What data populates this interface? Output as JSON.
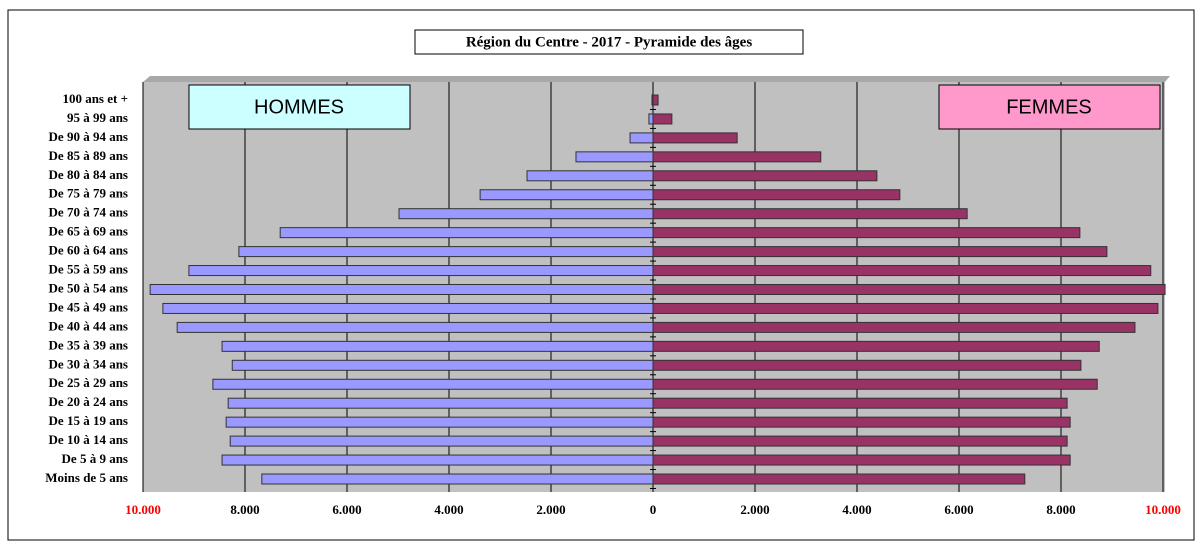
{
  "chart_data": {
    "type": "bar",
    "orientation": "horizontal",
    "title": "Région du Centre - 2017 - Pyramide des âges",
    "categories": [
      "100 ans et +",
      "95 à 99 ans",
      "De 90 à 94 ans",
      "De 85 à 89 ans",
      "De 80 à 84 ans",
      "De 75 à 79 ans",
      "De 70 à 74 ans",
      "De 65 à 69 ans",
      "De 60 à 64 ans",
      "De 55 à 59 ans",
      "De 50 à 54 ans",
      "De 45 à 49 ans",
      "De 40 à 44 ans",
      "De 35 à 39 ans",
      "De 30 à 34 ans",
      "De 25 à 29 ans",
      "De 20 à 24 ans",
      "De 15 à 19 ans",
      "De 10 à 14 ans",
      "De 5 à 9 ans",
      "Moins de 5 ans"
    ],
    "series": [
      {
        "name": "HOMMES",
        "color": "#9999ff",
        "values": [
          -20,
          -80,
          -450,
          -1510,
          -2470,
          -3390,
          -4980,
          -7310,
          -8120,
          -9100,
          -9860,
          -9610,
          -9330,
          -8450,
          -8250,
          -8630,
          -8330,
          -8370,
          -8290,
          -8450,
          -7670
        ]
      },
      {
        "name": "FEMMES",
        "color": "#993366",
        "values": [
          100,
          370,
          1650,
          3290,
          4390,
          4840,
          6160,
          8370,
          8900,
          9760,
          10040,
          9900,
          9450,
          8750,
          8390,
          8710,
          8120,
          8180,
          8120,
          8180,
          7290
        ]
      }
    ],
    "xlim": [
      -10000,
      10000
    ],
    "xticks": [
      {
        "value": -10000,
        "label": "10.000"
      },
      {
        "value": -8000,
        "label": "8.000"
      },
      {
        "value": -6000,
        "label": "6.000"
      },
      {
        "value": -4000,
        "label": "4.000"
      },
      {
        "value": -2000,
        "label": "2.000"
      },
      0,
      {
        "value": 2000,
        "label": "2.000"
      },
      {
        "value": 4000,
        "label": "4.000"
      },
      {
        "value": 6000,
        "label": "6.000"
      },
      {
        "value": 8000,
        "label": "8.000"
      },
      {
        "value": 10000,
        "label": "10.000"
      }
    ],
    "grid": true
  }
}
